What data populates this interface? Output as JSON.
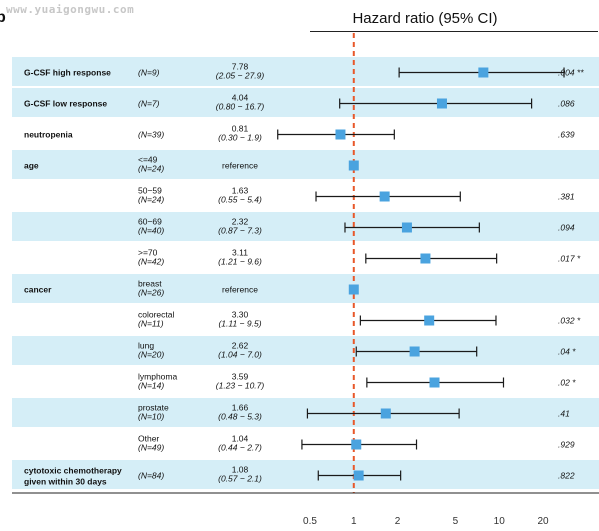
{
  "watermark": "www.yuaigongwu.com",
  "panel_letter": "b",
  "chart_data": {
    "type": "forest",
    "title": "Hazard ratio (95% CI)",
    "scale": "log",
    "xlim": [
      0.5,
      20
    ],
    "x_ticks": [
      "0.5",
      "1",
      "2",
      "5",
      "10",
      "20"
    ],
    "reference_line": 1,
    "rows": [
      {
        "group": "G-CSF high response",
        "sub": "",
        "n": "(N=9)",
        "hr_text": "7.78",
        "ci_text": "(2.05 − 27.9)",
        "hr": 7.78,
        "lo": 2.05,
        "hi": 27.9,
        "p": ".004 **",
        "shaded": true
      },
      {
        "group": "G-CSF low response",
        "sub": "",
        "n": "(N=7)",
        "hr_text": "4.04",
        "ci_text": "(0.80 − 16.7)",
        "hr": 4.04,
        "lo": 0.8,
        "hi": 16.7,
        "p": ".086",
        "shaded": true
      },
      {
        "group": "neutropenia",
        "sub": "",
        "n": "(N=39)",
        "hr_text": "0.81",
        "ci_text": "(0.30 − 1.9)",
        "hr": 0.81,
        "lo": 0.3,
        "hi": 1.9,
        "p": ".639",
        "shaded": false
      },
      {
        "group": "age",
        "sub": "<=49",
        "n": "(N=24)",
        "hr_text": "reference",
        "ci_text": "",
        "hr": 1,
        "lo": null,
        "hi": null,
        "p": "",
        "shaded": true
      },
      {
        "group": "",
        "sub": "50−59",
        "n": "(N=24)",
        "hr_text": "1.63",
        "ci_text": "(0.55 − 5.4)",
        "hr": 1.63,
        "lo": 0.55,
        "hi": 5.4,
        "p": ".381",
        "shaded": false
      },
      {
        "group": "",
        "sub": "60−69",
        "n": "(N=40)",
        "hr_text": "2.32",
        "ci_text": "(0.87 − 7.3)",
        "hr": 2.32,
        "lo": 0.87,
        "hi": 7.3,
        "p": ".094",
        "shaded": true
      },
      {
        "group": "",
        "sub": ">=70",
        "n": "(N=42)",
        "hr_text": "3.11",
        "ci_text": "(1.21 − 9.6)",
        "hr": 3.11,
        "lo": 1.21,
        "hi": 9.6,
        "p": ".017 *",
        "shaded": false
      },
      {
        "group": "cancer",
        "sub": "breast",
        "n": "(N=26)",
        "hr_text": "reference",
        "ci_text": "",
        "hr": 1,
        "lo": null,
        "hi": null,
        "p": "",
        "shaded": true
      },
      {
        "group": "",
        "sub": "colorectal",
        "n": "(N=11)",
        "hr_text": "3.30",
        "ci_text": "(1.11 − 9.5)",
        "hr": 3.3,
        "lo": 1.11,
        "hi": 9.5,
        "p": ".032 *",
        "shaded": false
      },
      {
        "group": "",
        "sub": "lung",
        "n": "(N=20)",
        "hr_text": "2.62",
        "ci_text": "(1.04 − 7.0)",
        "hr": 2.62,
        "lo": 1.04,
        "hi": 7.0,
        "p": ".04 *",
        "shaded": true
      },
      {
        "group": "",
        "sub": "lymphoma",
        "n": "(N=14)",
        "hr_text": "3.59",
        "ci_text": "(1.23 − 10.7)",
        "hr": 3.59,
        "lo": 1.23,
        "hi": 10.7,
        "p": ".02 *",
        "shaded": false
      },
      {
        "group": "",
        "sub": "prostate",
        "n": "(N=10)",
        "hr_text": "1.66",
        "ci_text": "(0.48 − 5.3)",
        "hr": 1.66,
        "lo": 0.48,
        "hi": 5.3,
        "p": ".41",
        "shaded": true
      },
      {
        "group": "",
        "sub": "Other",
        "n": "(N=49)",
        "hr_text": "1.04",
        "ci_text": "(0.44 − 2.7)",
        "hr": 1.04,
        "lo": 0.44,
        "hi": 2.7,
        "p": ".929",
        "shaded": false
      },
      {
        "group": "cytotoxic chemotherapy\ngiven within 30 days",
        "sub": "",
        "n": "(N=84)",
        "hr_text": "1.08",
        "ci_text": "(0.57 − 2.1)",
        "hr": 1.08,
        "lo": 0.57,
        "hi": 2.1,
        "p": ".822",
        "shaded": true
      }
    ]
  },
  "colors": {
    "shade": "#d5eef7",
    "marker": "#4aa3df",
    "ci_line": "#1a1a1a",
    "reference_line": "#e8582a",
    "text": "#111111"
  }
}
